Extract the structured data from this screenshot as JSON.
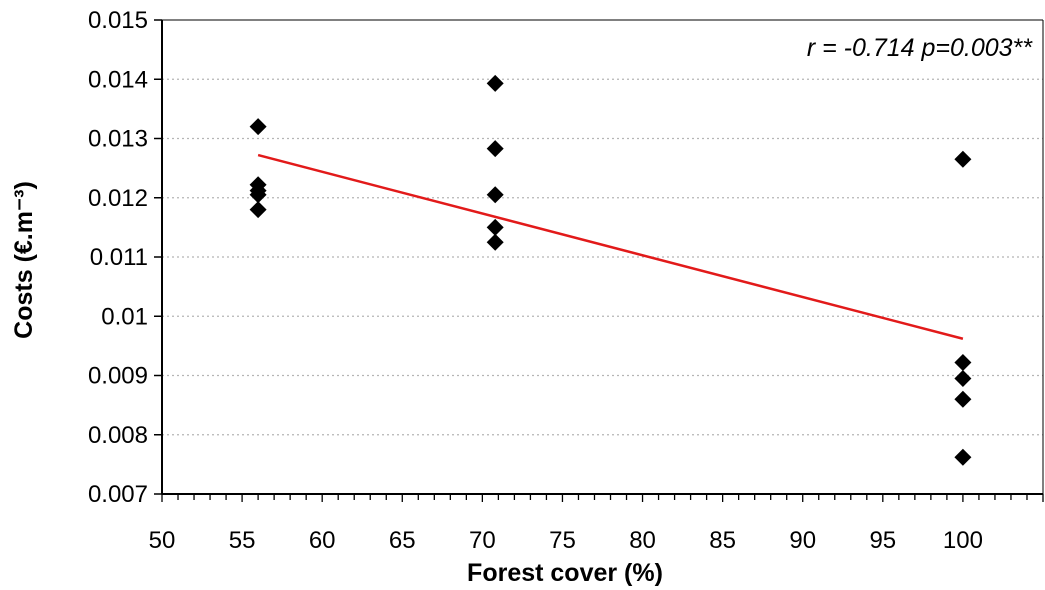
{
  "chart_data": {
    "type": "scatter",
    "title": "",
    "xlabel": "Forest cover (%)",
    "ylabel": "Costs (€.m⁻³)",
    "xlim": [
      50,
      105
    ],
    "ylim": [
      0.007,
      0.015
    ],
    "x_ticks": [
      "50",
      "55",
      "60",
      "65",
      "70",
      "75",
      "80",
      "85",
      "90",
      "95",
      "100"
    ],
    "y_ticks": [
      "0.007",
      "0.008",
      "0.009",
      "0.01",
      "0.011",
      "0.012",
      "0.013",
      "0.014",
      "0.015"
    ],
    "grid": "horizontal dotted",
    "legend": "none",
    "annotation": "r = -0.714  p=0.003**",
    "points": [
      {
        "x": 56,
        "y": 0.0132
      },
      {
        "x": 56,
        "y": 0.01222
      },
      {
        "x": 56,
        "y": 0.01212
      },
      {
        "x": 56,
        "y": 0.01205
      },
      {
        "x": 56,
        "y": 0.0118
      },
      {
        "x": 70.8,
        "y": 0.01393
      },
      {
        "x": 70.8,
        "y": 0.01283
      },
      {
        "x": 70.8,
        "y": 0.01205
      },
      {
        "x": 70.8,
        "y": 0.0115
      },
      {
        "x": 70.8,
        "y": 0.01125
      },
      {
        "x": 100,
        "y": 0.01265
      },
      {
        "x": 100,
        "y": 0.00922
      },
      {
        "x": 100,
        "y": 0.00895
      },
      {
        "x": 100,
        "y": 0.0086
      },
      {
        "x": 100,
        "y": 0.00762
      }
    ],
    "trendline": {
      "x": [
        56,
        100
      ],
      "y": [
        0.01272,
        0.00962
      ],
      "color": "#e21a1a"
    },
    "marker_color": "#000000",
    "grid_color": "#b5b5b5"
  }
}
